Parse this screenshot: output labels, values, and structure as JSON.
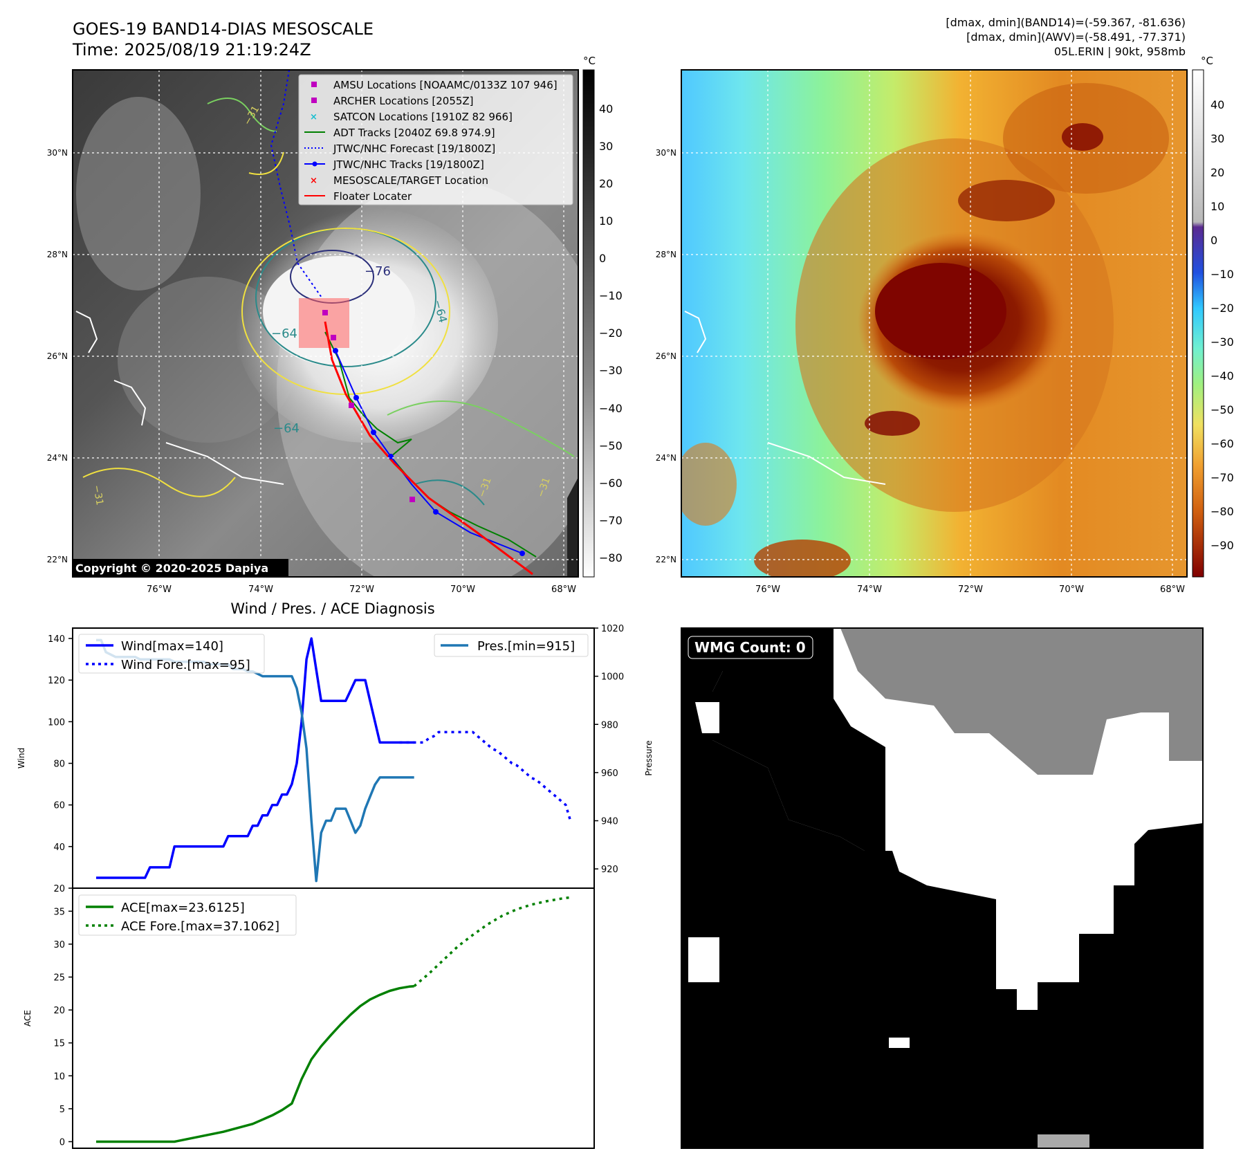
{
  "header": {
    "title_line1": "GOES-19 BAND14-DIAS MESOSCALE",
    "title_line2": "Time: 2025/08/19 21:19:24Z",
    "stats_line1": "[dmax, dmin](BAND14)=(-59.367, -81.636)",
    "stats_line2": "[dmax, dmin](AWV)=(-58.491, -77.371)",
    "stats_line3": "05L.ERIN | 90kt, 958mb",
    "copyright": "Copyright © 2020-2025 Dapiya",
    "unit": "°C"
  },
  "map_axes": {
    "lat_labels": [
      "30°N",
      "28°N",
      "26°N",
      "24°N",
      "22°N"
    ],
    "lon_labels": [
      "76°W",
      "74°W",
      "72°W",
      "70°W",
      "68°W"
    ]
  },
  "colorbar_left_ticks": [
    "40",
    "30",
    "20",
    "10",
    "0",
    "−10",
    "−20",
    "−30",
    "−40",
    "−50",
    "−60",
    "−70",
    "−80"
  ],
  "colorbar_right_ticks": [
    "40",
    "30",
    "20",
    "10",
    "0",
    "−10",
    "−20",
    "−30",
    "−40",
    "−50",
    "−60",
    "−70",
    "−80",
    "−90"
  ],
  "legend": [
    {
      "label": "AMSU Locations [NOAAMC/0133Z 107 946]",
      "marker": "square",
      "color": "#c000c0"
    },
    {
      "label": "ARCHER Locations [2055Z]",
      "marker": "square",
      "color": "#c000c0"
    },
    {
      "label": "SATCON Locations [1910Z 82 966]",
      "marker": "x",
      "color": "#17becf"
    },
    {
      "label": "ADT Tracks [2040Z 69.8 974.9]",
      "marker": "line",
      "color": "#008000"
    },
    {
      "label": "JTWC/NHC Forecast [19/1800Z]",
      "marker": "dotted",
      "color": "#0000ff"
    },
    {
      "label": "JTWC/NHC Tracks [19/1800Z]",
      "marker": "line-dot",
      "color": "#0000ff"
    },
    {
      "label": "MESOSCALE/TARGET Location",
      "marker": "x",
      "color": "#ff0000"
    },
    {
      "label": "Floater Locater",
      "marker": "line",
      "color": "#ff0000"
    }
  ],
  "contour_labels": [
    "−76",
    "−64",
    "−64",
    "−64",
    "−31",
    "−31",
    "−31",
    "−31"
  ],
  "wmg": {
    "label": "WMG Count: 0"
  },
  "chart_data": [
    {
      "type": "line",
      "title": "Wind / Pres. / ACE Diagnosis",
      "xlabel": "",
      "ylabel": "Wind",
      "ylim": [
        20,
        145
      ],
      "yticks": [
        20,
        40,
        60,
        80,
        100,
        120,
        140
      ],
      "y2label": "Pressure",
      "y2lim": [
        912,
        1020
      ],
      "y2ticks": [
        920,
        940,
        960,
        980,
        1000,
        1020
      ],
      "legend_left": [
        "Wind[max=140]",
        "Wind Fore.[max=95]"
      ],
      "legend_right": [
        "Pres.[min=915]"
      ],
      "series": [
        {
          "name": "Wind",
          "color": "#0000ff",
          "style": "solid",
          "x": [
            0,
            1,
            2,
            3,
            4,
            5,
            6,
            7,
            8,
            9,
            10,
            11,
            12,
            13,
            14,
            15,
            16,
            17,
            18,
            19,
            20,
            21,
            22,
            23,
            24,
            25,
            26,
            27,
            28,
            29,
            30,
            31,
            32,
            33,
            34,
            35,
            36,
            37,
            38,
            39,
            40,
            41,
            42,
            43,
            44,
            45,
            46,
            47,
            48,
            49,
            50,
            51,
            52,
            53,
            54,
            55,
            56,
            57,
            58,
            59,
            60,
            61,
            62,
            63,
            64,
            65
          ],
          "values": [
            25,
            25,
            25,
            25,
            25,
            25,
            25,
            25,
            25,
            25,
            25,
            30,
            30,
            30,
            30,
            30,
            40,
            40,
            40,
            40,
            40,
            40,
            40,
            40,
            40,
            40,
            40,
            45,
            45,
            45,
            45,
            45,
            50,
            50,
            55,
            55,
            60,
            60,
            65,
            65,
            70,
            80,
            100,
            130,
            140,
            125,
            110,
            110,
            110,
            110,
            110,
            110,
            115,
            120,
            120,
            120,
            110,
            100,
            90,
            90,
            90,
            90,
            90,
            90,
            90,
            90
          ]
        },
        {
          "name": "Wind Fore.",
          "color": "#0000ff",
          "style": "dotted",
          "x": [
            62,
            63,
            64,
            65,
            66,
            67,
            68,
            69,
            70,
            71,
            72,
            73,
            74,
            75,
            76,
            77,
            78,
            79,
            80,
            81,
            82,
            83,
            84,
            85,
            86,
            87,
            88,
            89,
            90,
            91,
            92,
            93,
            94,
            95,
            96,
            97
          ],
          "values": [
            90,
            90,
            90,
            90,
            90,
            90,
            92,
            93,
            95,
            95,
            95,
            95,
            95,
            95,
            95,
            95,
            93,
            91,
            89,
            87,
            86,
            84,
            82,
            80,
            79,
            77,
            75,
            73,
            72,
            70,
            68,
            66,
            64,
            62,
            60,
            52
          ]
        },
        {
          "name": "Pres.",
          "color": "#1f77b4",
          "style": "solid",
          "axis": "right",
          "x": [
            0,
            1,
            2,
            3,
            4,
            5,
            6,
            7,
            8,
            9,
            10,
            11,
            12,
            13,
            14,
            15,
            16,
            17,
            18,
            19,
            20,
            21,
            22,
            23,
            24,
            25,
            26,
            27,
            28,
            29,
            30,
            31,
            32,
            33,
            34,
            35,
            36,
            37,
            38,
            39,
            40,
            41,
            42,
            43,
            44,
            45,
            46,
            47,
            48,
            49,
            50,
            51,
            52,
            53,
            54,
            55,
            56,
            57,
            58,
            59,
            60,
            61,
            62,
            63,
            64,
            65
          ],
          "values": [
            1015,
            1015,
            1010,
            1009,
            1008,
            1008,
            1008,
            1008,
            1008,
            1007,
            1007,
            1007,
            1007,
            1007,
            1007,
            1007,
            1006,
            1006,
            1006,
            1006,
            1006,
            1006,
            1006,
            1005,
            1005,
            1005,
            1005,
            1005,
            1003,
            1003,
            1003,
            1002,
            1002,
            1001,
            1000,
            1000,
            1000,
            1000,
            1000,
            1000,
            1000,
            995,
            985,
            970,
            940,
            915,
            935,
            940,
            940,
            945,
            945,
            945,
            940,
            935,
            938,
            945,
            950,
            955,
            958,
            958,
            958,
            958,
            958,
            958,
            958,
            958
          ]
        }
      ]
    },
    {
      "type": "line",
      "title": "",
      "xlabel": "",
      "ylabel": "ACE",
      "ylim": [
        -1,
        38.5
      ],
      "yticks": [
        0,
        5,
        10,
        15,
        20,
        25,
        30,
        35
      ],
      "legend": [
        "ACE[max=23.6125]",
        "ACE Fore.[max=37.1062]"
      ],
      "series": [
        {
          "name": "ACE",
          "color": "#008000",
          "style": "solid",
          "x": [
            0,
            16,
            26,
            32,
            36,
            38,
            40,
            42,
            44,
            46,
            48,
            50,
            52,
            54,
            56,
            58,
            60,
            62,
            64,
            65
          ],
          "values": [
            0,
            0,
            1.5,
            2.7,
            4.0,
            4.8,
            5.8,
            9.5,
            12.5,
            14.5,
            16.2,
            17.8,
            19.3,
            20.6,
            21.6,
            22.3,
            22.9,
            23.3,
            23.55,
            23.6125
          ]
        },
        {
          "name": "ACE Fore.",
          "color": "#008000",
          "style": "dotted",
          "x": [
            65,
            68,
            71,
            74,
            77,
            80,
            83,
            86,
            89,
            92,
            95,
            97
          ],
          "values": [
            23.6125,
            25.5,
            27.6,
            29.7,
            31.4,
            33.0,
            34.3,
            35.3,
            36.0,
            36.5,
            36.9,
            37.1062
          ]
        }
      ]
    }
  ]
}
